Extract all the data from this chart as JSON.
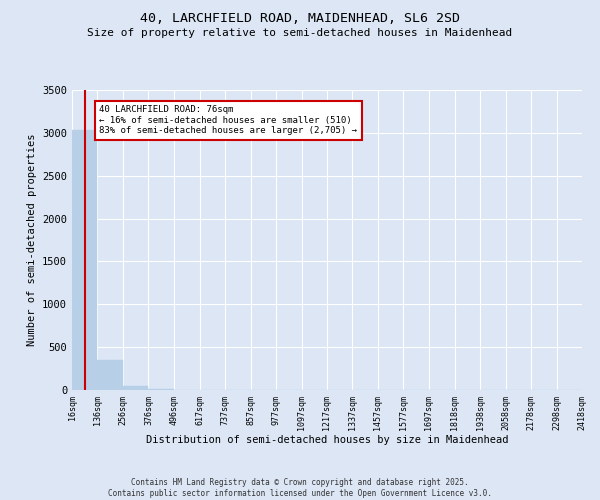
{
  "title_line1": "40, LARCHFIELD ROAD, MAIDENHEAD, SL6 2SD",
  "title_line2": "Size of property relative to semi-detached houses in Maidenhead",
  "xlabel": "Distribution of semi-detached houses by size in Maidenhead",
  "ylabel": "Number of semi-detached properties",
  "subject_size": 76,
  "subject_label": "40 LARCHFIELD ROAD: 76sqm",
  "annotation_line1": "← 16% of semi-detached houses are smaller (510)",
  "annotation_line2": "83% of semi-detached houses are larger (2,705) →",
  "bin_edges": [
    16,
    136,
    256,
    376,
    496,
    617,
    737,
    857,
    977,
    1097,
    1217,
    1337,
    1457,
    1577,
    1697,
    1818,
    1938,
    2058,
    2178,
    2298,
    2418
  ],
  "bin_counts": [
    3030,
    350,
    45,
    8,
    4,
    2,
    1,
    1,
    0,
    0,
    0,
    0,
    0,
    0,
    0,
    0,
    0,
    0,
    0,
    0
  ],
  "bar_color": "#b8cfe8",
  "bar_edge_color": "#b8cfe8",
  "subject_line_color": "#cc0000",
  "annotation_box_color": "#cc0000",
  "background_color": "#dce6f5",
  "grid_color": "#ffffff",
  "ylim": [
    0,
    3500
  ],
  "yticks": [
    0,
    500,
    1000,
    1500,
    2000,
    2500,
    3000,
    3500
  ],
  "copyright_text": "Contains HM Land Registry data © Crown copyright and database right 2025.\nContains public sector information licensed under the Open Government Licence v3.0."
}
